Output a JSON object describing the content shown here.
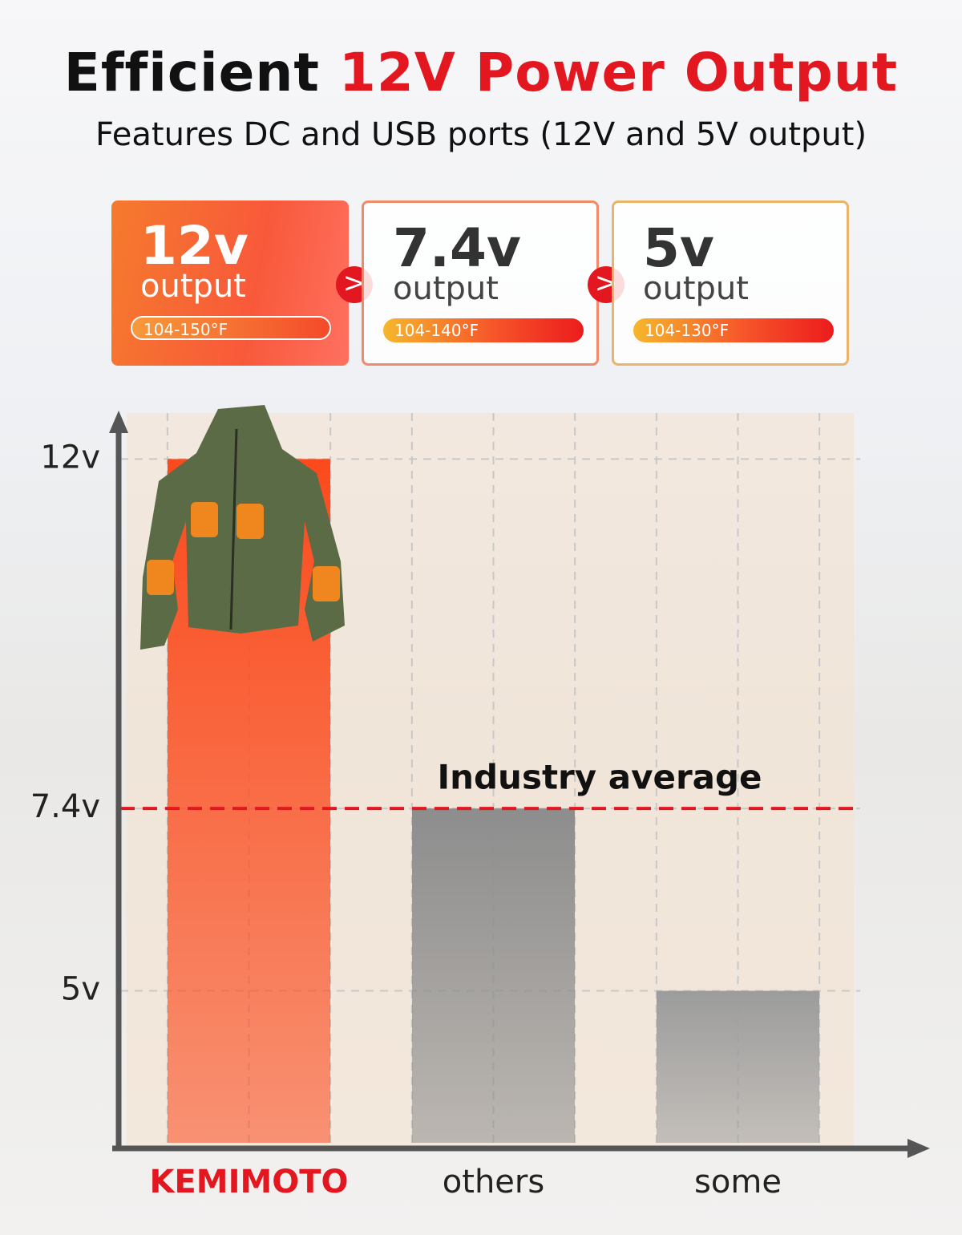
{
  "header": {
    "title": [
      "Efficient",
      "12V Power Output"
    ],
    "subtitle": "Features DC and USB ports (12V and 5V output)"
  },
  "cards": [
    {
      "value": "12v",
      "label": "output",
      "range": "104-150°F"
    },
    {
      "value": "7.4v",
      "label": "output",
      "range": "104-140°F"
    },
    {
      "value": "5v",
      "label": "output",
      "range": "104-130°F"
    }
  ],
  "chart_data": {
    "type": "bar",
    "categories": [
      "KEMIMOTO",
      "others",
      "some"
    ],
    "values": [
      12,
      7.4,
      5
    ],
    "colors": [
      "#fb4a1c",
      "#8d8d8d",
      "#9c9c9c"
    ],
    "ylim": [
      3,
      12.5
    ],
    "yticks": [
      {
        "value": 5,
        "label": "5v"
      },
      {
        "value": 7.4,
        "label": "7.4v"
      },
      {
        "value": 12,
        "label": "12v"
      }
    ],
    "grid": true,
    "reference_line": {
      "label": "Industry average",
      "value": 7.4,
      "color": "#e3171f"
    }
  }
}
